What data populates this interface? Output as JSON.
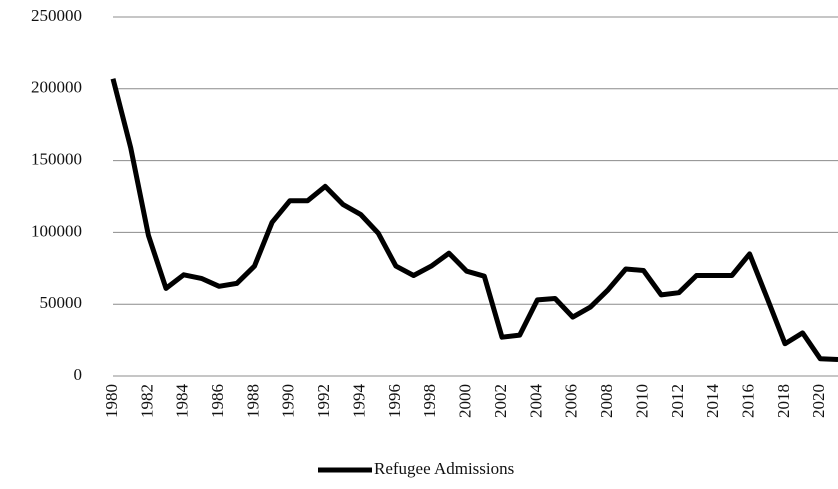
{
  "chart_data": {
    "type": "line",
    "x": [
      1980,
      1981,
      1982,
      1983,
      1984,
      1985,
      1986,
      1987,
      1988,
      1989,
      1990,
      1991,
      1992,
      1993,
      1994,
      1995,
      1996,
      1997,
      1998,
      1999,
      2000,
      2001,
      2002,
      2003,
      2004,
      2005,
      2006,
      2007,
      2008,
      2009,
      2010,
      2011,
      2012,
      2013,
      2014,
      2015,
      2016,
      2017,
      2018,
      2019,
      2020,
      2021
    ],
    "series": [
      {
        "name": "Refugee Admissions",
        "color": "#000000",
        "values": [
          207000,
          159000,
          98000,
          61000,
          70500,
          68000,
          62500,
          64500,
          76500,
          107000,
          122000,
          122000,
          132000,
          119500,
          112500,
          99500,
          76500,
          70000,
          76500,
          85500,
          73000,
          69500,
          27000,
          28500,
          53000,
          54000,
          41000,
          48000,
          60000,
          74500,
          73500,
          56500,
          58000,
          70000,
          70000,
          70000,
          85000,
          54000,
          22500,
          30000,
          12000,
          11500
        ]
      }
    ],
    "xlim": [
      1980,
      2021
    ],
    "xticks": [
      1980,
      1982,
      1984,
      1986,
      1988,
      1990,
      1992,
      1994,
      1996,
      1998,
      2000,
      2002,
      2004,
      2006,
      2008,
      2010,
      2012,
      2014,
      2016,
      2018,
      2020
    ],
    "ylim": [
      0,
      250000
    ],
    "yticks": [
      0,
      50000,
      100000,
      150000,
      200000,
      250000
    ],
    "grid": true,
    "legend": "bottom"
  }
}
